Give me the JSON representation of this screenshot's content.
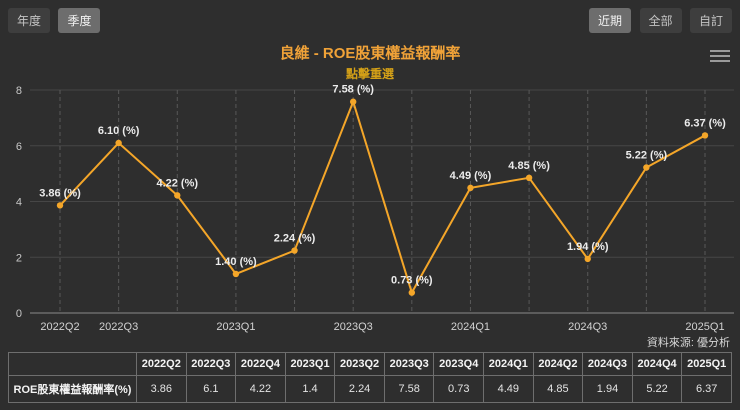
{
  "toolbar": {
    "left_buttons": [
      {
        "label": "年度",
        "active": false
      },
      {
        "label": "季度",
        "active": true
      }
    ],
    "right_buttons": [
      {
        "label": "近期",
        "active": true
      },
      {
        "label": "全部",
        "active": false
      },
      {
        "label": "自訂",
        "active": false
      }
    ]
  },
  "chart_data": {
    "type": "line",
    "title": "良維 - ROE股東權益報酬率",
    "subtitle": "點擊重選",
    "source": "資料來源: 優分析",
    "categories": [
      "2022Q2",
      "2022Q3",
      "2022Q4",
      "2023Q1",
      "2023Q2",
      "2023Q3",
      "2023Q4",
      "2024Q1",
      "2024Q2",
      "2024Q3",
      "2024Q4",
      "2025Q1"
    ],
    "values": [
      3.86,
      6.1,
      4.22,
      1.4,
      2.24,
      7.58,
      0.73,
      4.49,
      4.85,
      1.94,
      5.22,
      6.37
    ],
    "point_labels": [
      "3.86 (%)",
      "6.10 (%)",
      "4.22 (%)",
      "1.40 (%)",
      "2.24 (%)",
      "7.58 (%)",
      "0.73 (%)",
      "4.49 (%)",
      "4.85 (%)",
      "1.94 (%)",
      "5.22 (%)",
      "6.37 (%)"
    ],
    "x_tick_labels": [
      "2022Q2",
      "2022Q3",
      "2023Q1",
      "2023Q3",
      "2024Q1",
      "2024Q3",
      "2025Q1"
    ],
    "x_tick_indices": [
      0,
      1,
      3,
      5,
      7,
      9,
      11
    ],
    "y_ticks": [
      0,
      2,
      4,
      6,
      8
    ],
    "ylim": [
      0,
      8
    ],
    "ylabel": "",
    "xlabel": "",
    "legend": "none",
    "grid": "on",
    "line_color": "#f4a629",
    "label_color": "#ececec",
    "axis_text_color": "#c8c8c8"
  },
  "table": {
    "row_header": "ROE股東權益報酬率(%)",
    "columns": [
      "2022Q2",
      "2022Q3",
      "2022Q4",
      "2023Q1",
      "2023Q2",
      "2023Q3",
      "2023Q4",
      "2024Q1",
      "2024Q2",
      "2024Q3",
      "2024Q4",
      "2025Q1"
    ],
    "values": [
      "3.86",
      "6.1",
      "4.22",
      "1.4",
      "2.24",
      "7.58",
      "0.73",
      "4.49",
      "4.85",
      "1.94",
      "5.22",
      "6.37"
    ]
  }
}
